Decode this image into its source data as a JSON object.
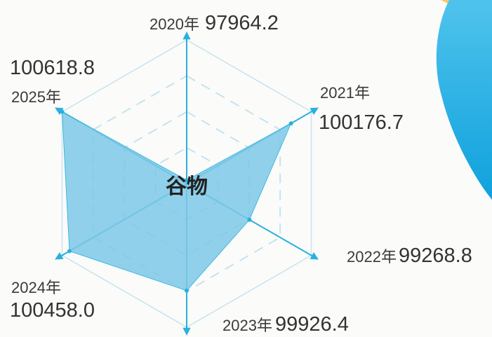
{
  "colors": {
    "fill": "#7cc8e6",
    "axis": "#28b1dc",
    "grid": "#c7e3ee",
    "blob_light": "#4fc3ec",
    "blob_dark": "#0fa1dd",
    "accent": "#f4c86a"
  },
  "chart_data": {
    "type": "radar",
    "center_label": "谷物",
    "categories": [
      "2020年",
      "2021年",
      "2022年",
      "2023年",
      "2024年",
      "2025年"
    ],
    "values": [
      97964.2,
      100176.7,
      99268.8,
      99926.4,
      100458.0,
      100618.8
    ],
    "value_labels": [
      "97964.2",
      "100176.7",
      "99268.8",
      "99926.4",
      "100458.0",
      "100618.8"
    ],
    "r_min": 97900,
    "r_max": 100618.8,
    "grid": true
  }
}
